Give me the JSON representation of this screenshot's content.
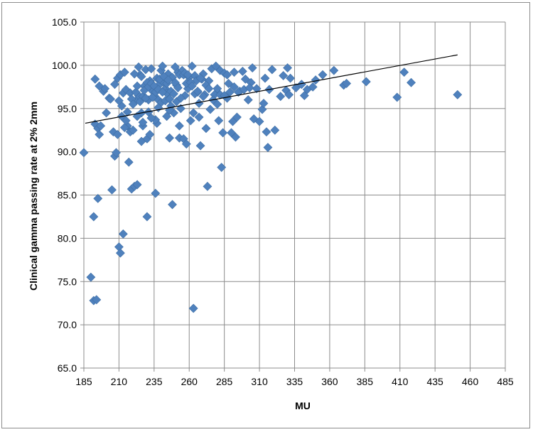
{
  "chart_data": {
    "type": "scatter",
    "title": "",
    "xlabel": "MU",
    "ylabel": "Clinical gamma passing rate at 2%  2mm",
    "xlim": [
      185,
      485
    ],
    "ylim": [
      65.0,
      105.0
    ],
    "x_ticks": [
      "185",
      "210",
      "235",
      "260",
      "285",
      "310",
      "335",
      "360",
      "385",
      "410",
      "435",
      "460",
      "485"
    ],
    "y_ticks": [
      "65.0",
      "70.0",
      "75.0",
      "80.0",
      "85.0",
      "90.0",
      "95.0",
      "100.0",
      "105.0"
    ],
    "grid": "horizontal-and-vertical",
    "legend": "none",
    "marker_color": "#4f81bd",
    "trendline": {
      "type": "linear",
      "color": "#000000",
      "points": [
        [
          186,
          93.3
        ],
        [
          451,
          101.2
        ]
      ]
    },
    "points": [
      [
        185,
        89.9
      ],
      [
        192,
        82.5
      ],
      [
        190,
        75.5
      ],
      [
        192,
        72.8
      ],
      [
        194,
        72.9
      ],
      [
        195,
        84.6
      ],
      [
        193,
        93.2
      ],
      [
        195,
        92.7
      ],
      [
        196,
        92.0
      ],
      [
        197,
        93.0
      ],
      [
        193,
        98.4
      ],
      [
        196,
        97.6
      ],
      [
        199,
        97.0
      ],
      [
        200,
        97.3
      ],
      [
        201,
        94.5
      ],
      [
        203,
        96.2
      ],
      [
        204,
        96.1
      ],
      [
        205,
        85.6
      ],
      [
        206,
        92.3
      ],
      [
        207,
        89.5
      ],
      [
        208,
        89.9
      ],
      [
        209,
        92.0
      ],
      [
        210,
        79.0
      ],
      [
        211,
        78.3
      ],
      [
        213,
        80.5
      ],
      [
        207,
        97.8
      ],
      [
        209,
        98.5
      ],
      [
        211,
        98.9
      ],
      [
        212,
        95.3
      ],
      [
        213,
        96.8
      ],
      [
        214,
        99.2
      ],
      [
        215,
        97.2
      ],
      [
        216,
        93.0
      ],
      [
        217,
        88.8
      ],
      [
        218,
        92.3
      ],
      [
        219,
        85.7
      ],
      [
        220,
        92.5
      ],
      [
        221,
        86.0
      ],
      [
        222,
        95.9
      ],
      [
        223,
        86.2
      ],
      [
        224,
        96.5
      ],
      [
        224,
        99.8
      ],
      [
        225,
        98.9
      ],
      [
        226,
        91.2
      ],
      [
        226,
        94.5
      ],
      [
        227,
        93.0
      ],
      [
        228,
        97.6
      ],
      [
        229,
        99.5
      ],
      [
        230,
        91.5
      ],
      [
        230,
        82.5
      ],
      [
        231,
        96.0
      ],
      [
        232,
        98.2
      ],
      [
        232,
        92.0
      ],
      [
        233,
        99.6
      ],
      [
        234,
        97.0
      ],
      [
        235,
        96.5
      ],
      [
        236,
        85.2
      ],
      [
        237,
        93.3
      ],
      [
        237,
        98.5
      ],
      [
        238,
        96.0
      ],
      [
        239,
        97.8
      ],
      [
        240,
        99.4
      ],
      [
        241,
        99.9
      ],
      [
        242,
        98.0
      ],
      [
        243,
        97.3
      ],
      [
        244,
        96.8
      ],
      [
        245,
        99.0
      ],
      [
        246,
        91.6
      ],
      [
        247,
        95.3
      ],
      [
        248,
        83.9
      ],
      [
        248,
        98.6
      ],
      [
        249,
        94.5
      ],
      [
        250,
        99.8
      ],
      [
        251,
        97.7
      ],
      [
        252,
        99.2
      ],
      [
        253,
        91.6
      ],
      [
        254,
        95.0
      ],
      [
        255,
        99.4
      ],
      [
        256,
        91.5
      ],
      [
        257,
        96.5
      ],
      [
        258,
        90.9
      ],
      [
        259,
        97.3
      ],
      [
        260,
        98.6
      ],
      [
        261,
        93.6
      ],
      [
        262,
        99.9
      ],
      [
        263,
        94.5
      ],
      [
        263,
        71.9
      ],
      [
        264,
        98.8
      ],
      [
        265,
        98.2
      ],
      [
        266,
        96.9
      ],
      [
        267,
        94.0
      ],
      [
        268,
        90.7
      ],
      [
        269,
        98.4
      ],
      [
        270,
        99.0
      ],
      [
        271,
        96.6
      ],
      [
        272,
        92.7
      ],
      [
        273,
        86.0
      ],
      [
        274,
        98.2
      ],
      [
        275,
        94.9
      ],
      [
        276,
        99.6
      ],
      [
        278,
        96.6
      ],
      [
        279,
        99.9
      ],
      [
        280,
        95.5
      ],
      [
        281,
        93.6
      ],
      [
        282,
        99.4
      ],
      [
        283,
        88.2
      ],
      [
        284,
        92.2
      ],
      [
        285,
        99.1
      ],
      [
        287,
        96.2
      ],
      [
        288,
        97.9
      ],
      [
        290,
        92.2
      ],
      [
        291,
        93.5
      ],
      [
        292,
        99.2
      ],
      [
        293,
        91.7
      ],
      [
        294,
        94.0
      ],
      [
        296,
        97.0
      ],
      [
        298,
        99.3
      ],
      [
        300,
        98.4
      ],
      [
        302,
        96.0
      ],
      [
        304,
        98.0
      ],
      [
        305,
        99.7
      ],
      [
        306,
        93.8
      ],
      [
        308,
        97.3
      ],
      [
        310,
        93.5
      ],
      [
        312,
        94.9
      ],
      [
        313,
        95.6
      ],
      [
        314,
        98.5
      ],
      [
        315,
        92.3
      ],
      [
        316,
        90.5
      ],
      [
        317,
        97.2
      ],
      [
        319,
        99.5
      ],
      [
        321,
        92.5
      ],
      [
        325,
        96.4
      ],
      [
        327,
        98.8
      ],
      [
        329,
        97.1
      ],
      [
        330,
        99.7
      ],
      [
        331,
        96.6
      ],
      [
        332,
        98.5
      ],
      [
        336,
        97.4
      ],
      [
        340,
        97.8
      ],
      [
        342,
        96.5
      ],
      [
        344,
        97.2
      ],
      [
        348,
        97.5
      ],
      [
        350,
        98.3
      ],
      [
        355,
        98.9
      ],
      [
        363,
        99.4
      ],
      [
        370,
        97.7
      ],
      [
        372,
        97.9
      ],
      [
        386,
        98.1
      ],
      [
        408,
        96.3
      ],
      [
        413,
        99.2
      ],
      [
        418,
        98.0
      ],
      [
        451,
        96.6
      ],
      [
        218,
        96.8
      ],
      [
        219,
        96.1
      ],
      [
        220,
        95.5
      ],
      [
        221,
        99.0
      ],
      [
        222,
        96.9
      ],
      [
        223,
        97.6
      ],
      [
        225,
        95.8
      ],
      [
        226,
        98.7
      ],
      [
        227,
        96.4
      ],
      [
        228,
        97.1
      ],
      [
        229,
        96.2
      ],
      [
        230,
        98.0
      ],
      [
        231,
        97.5
      ],
      [
        233,
        97.9
      ],
      [
        234,
        96.3
      ],
      [
        235,
        97.6
      ],
      [
        236,
        96.9
      ],
      [
        238,
        97.2
      ],
      [
        239,
        98.4
      ],
      [
        240,
        95.7
      ],
      [
        241,
        96.9
      ],
      [
        242,
        98.7
      ],
      [
        243,
        95.9
      ],
      [
        244,
        97.9
      ],
      [
        245,
        98.3
      ],
      [
        246,
        96.1
      ],
      [
        247,
        97.0
      ],
      [
        249,
        96.7
      ],
      [
        250,
        98.0
      ],
      [
        251,
        95.8
      ],
      [
        252,
        97.4
      ],
      [
        253,
        98.9
      ],
      [
        254,
        96.2
      ],
      [
        256,
        98.9
      ],
      [
        257,
        99.1
      ],
      [
        258,
        97.9
      ],
      [
        259,
        98.9
      ],
      [
        261,
        98.0
      ],
      [
        262,
        97.6
      ],
      [
        264,
        96.7
      ],
      [
        266,
        97.0
      ],
      [
        268,
        98.5
      ],
      [
        270,
        96.4
      ],
      [
        272,
        97.7
      ],
      [
        274,
        97.3
      ],
      [
        277,
        96.0
      ],
      [
        280,
        97.3
      ],
      [
        282,
        96.6
      ],
      [
        285,
        96.5
      ],
      [
        287,
        98.9
      ],
      [
        289,
        96.9
      ],
      [
        292,
        97.5
      ],
      [
        295,
        96.9
      ],
      [
        299,
        97.2
      ],
      [
        303,
        97.4
      ],
      [
        216,
        94.6
      ],
      [
        223,
        94.1
      ],
      [
        227,
        93.4
      ],
      [
        231,
        94.6
      ],
      [
        214,
        92.8
      ],
      [
        210,
        95.9
      ],
      [
        212,
        94.1
      ],
      [
        215,
        93.6
      ],
      [
        236,
        93.7
      ],
      [
        246,
        94.8
      ],
      [
        253,
        93.0
      ],
      [
        238,
        95.1
      ],
      [
        244,
        94.1
      ],
      [
        233,
        93.9
      ],
      [
        267,
        95.6
      ]
    ]
  }
}
